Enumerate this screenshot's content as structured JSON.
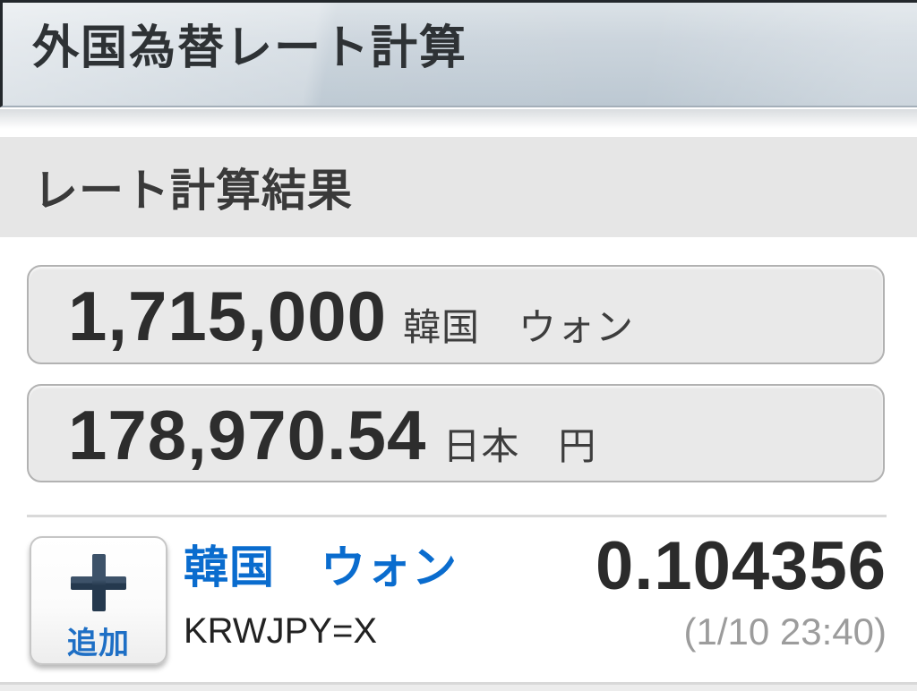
{
  "header": {
    "title": "外国為替レート計算"
  },
  "results": {
    "heading": "レート計算結果",
    "amounts": [
      {
        "value": "1,715,000",
        "unit": "韓国　ウォン"
      },
      {
        "value": "178,970.54",
        "unit": "日本　円"
      }
    ]
  },
  "pair": {
    "add_button_label": "追加",
    "add_icon": "plus-icon",
    "name": "韓国　ウォン",
    "symbol": "KRWJPY=X",
    "rate": "0.104356",
    "timestamp": "(1/10 23:40)"
  },
  "colors": {
    "accent_blue": "#0a6cce",
    "plus_navy": "#2f4459",
    "text_dark": "#2d2d2d",
    "muted_gray": "#9c9c9c",
    "header_gradient_top": "#dbe2e7",
    "header_gradient_bottom": "#bcc8d2",
    "band_gray": "#e6e6e6",
    "box_fill": "#e9e9e9",
    "box_border": "#b2b2b2"
  }
}
